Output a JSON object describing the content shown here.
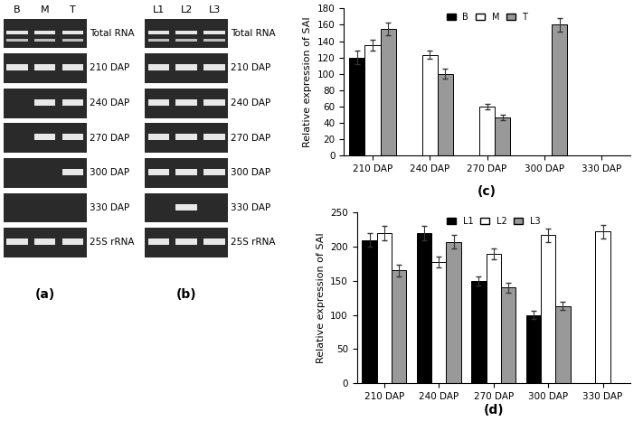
{
  "gels": [
    {
      "label": "(a)",
      "lanes": [
        "B",
        "M",
        "T"
      ],
      "rows": [
        "Total RNA",
        "210 DAP",
        "240 DAP",
        "270 DAP",
        "300 DAP",
        "330 DAP",
        "25S rRNA"
      ],
      "bands": [
        [
          true,
          true,
          true
        ],
        [
          true,
          true,
          true
        ],
        [
          false,
          true,
          true
        ],
        [
          false,
          true,
          true
        ],
        [
          false,
          false,
          true
        ],
        [
          false,
          false,
          false
        ],
        [
          true,
          true,
          true
        ]
      ]
    },
    {
      "label": "(b)",
      "lanes": [
        "L1",
        "L2",
        "L3"
      ],
      "rows": [
        "Total RNA",
        "210 DAP",
        "240 DAP",
        "270 DAP",
        "300 DAP",
        "330 DAP",
        "25S rRNA"
      ],
      "bands": [
        [
          true,
          true,
          true
        ],
        [
          true,
          true,
          true
        ],
        [
          true,
          true,
          true
        ],
        [
          true,
          true,
          true
        ],
        [
          true,
          true,
          true
        ],
        [
          false,
          true,
          false
        ],
        [
          true,
          true,
          true
        ]
      ]
    }
  ],
  "chart_data": [
    {
      "type": "bar",
      "label": "(c)",
      "ylabel": "Relative expression of SAI",
      "categories": [
        "210 DAP",
        "240 DAP",
        "270 DAP",
        "300 DAP",
        "330 DAP"
      ],
      "ylim": [
        0,
        180
      ],
      "yticks": [
        0,
        20,
        40,
        60,
        80,
        100,
        120,
        140,
        160,
        180
      ],
      "legend": "upper center",
      "series": [
        {
          "name": "B",
          "color": "#000000",
          "values": [
            120,
            null,
            null,
            null,
            null
          ],
          "errors": [
            8,
            null,
            null,
            null,
            null
          ]
        },
        {
          "name": "M",
          "color": "#ffffff",
          "values": [
            135,
            123,
            60,
            null,
            null
          ],
          "errors": [
            7,
            5,
            3,
            null,
            null
          ]
        },
        {
          "name": "T",
          "color": "#999999",
          "values": [
            155,
            100,
            47,
            160,
            null
          ],
          "errors": [
            8,
            6,
            3,
            8,
            null
          ]
        }
      ]
    },
    {
      "type": "bar",
      "label": "(d)",
      "ylabel": "Relative expression of SAI",
      "categories": [
        "210 DAP",
        "240 DAP",
        "270 DAP",
        "300 DAP",
        "330 DAP"
      ],
      "ylim": [
        0,
        250
      ],
      "yticks": [
        0,
        50,
        100,
        150,
        200,
        250
      ],
      "legend": "upper center",
      "series": [
        {
          "name": "L1",
          "color": "#000000",
          "values": [
            210,
            220,
            150,
            100,
            null
          ],
          "errors": [
            10,
            10,
            7,
            6,
            null
          ]
        },
        {
          "name": "L2",
          "color": "#ffffff",
          "values": [
            220,
            178,
            190,
            217,
            222
          ],
          "errors": [
            10,
            8,
            8,
            10,
            10
          ]
        },
        {
          "name": "L3",
          "color": "#999999",
          "values": [
            165,
            207,
            140,
            113,
            null
          ],
          "errors": [
            8,
            10,
            7,
            6,
            null
          ]
        }
      ]
    }
  ]
}
